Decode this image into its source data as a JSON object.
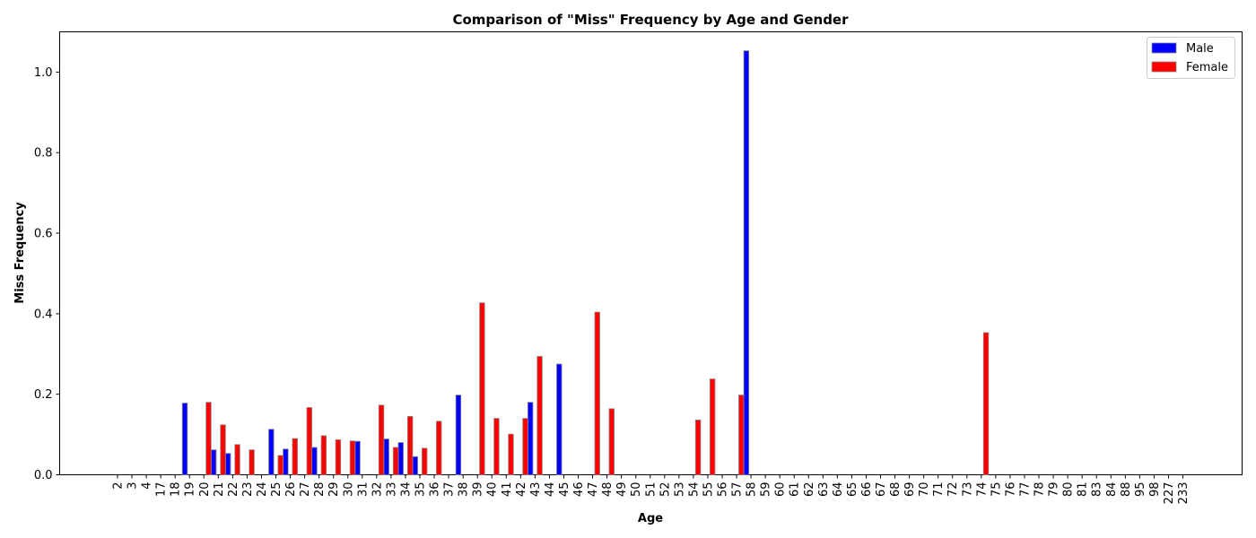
{
  "chart_data": {
    "type": "bar",
    "title": "Comparison of \"Miss\" Frequency by Age and Gender",
    "xlabel": "Age",
    "ylabel": "Miss Frequency",
    "ylim": [
      0,
      1.1
    ],
    "yticks": [
      "0.0",
      "0.2",
      "0.4",
      "0.6",
      "0.8",
      "1.0"
    ],
    "legend_position": "top-right",
    "categories": [
      "2",
      "3",
      "4",
      "17",
      "18",
      "19",
      "20",
      "21",
      "22",
      "23",
      "24",
      "25",
      "26",
      "27",
      "28",
      "29",
      "30",
      "31",
      "32",
      "33",
      "34",
      "35",
      "36",
      "37",
      "38",
      "39",
      "40",
      "41",
      "42",
      "43",
      "44",
      "45",
      "46",
      "47",
      "48",
      "49",
      "50",
      "51",
      "52",
      "53",
      "54",
      "55",
      "56",
      "57",
      "58",
      "59",
      "60",
      "61",
      "62",
      "63",
      "64",
      "65",
      "66",
      "67",
      "68",
      "69",
      "70",
      "71",
      "72",
      "73",
      "74",
      "75",
      "76",
      "77",
      "78",
      "79",
      "80",
      "81",
      "83",
      "84",
      "88",
      "95",
      "98",
      "227",
      "233"
    ],
    "series": [
      {
        "name": "Male",
        "color": "#0000ff",
        "values": [
          0,
          0,
          0,
          0,
          0,
          0.178,
          0,
          0.062,
          0.053,
          0,
          0,
          0.113,
          0.064,
          0,
          0.068,
          0,
          0,
          0.083,
          0,
          0.089,
          0.08,
          0.045,
          0,
          0,
          0.198,
          0,
          0,
          0,
          0,
          0.18,
          0,
          0.275,
          0,
          0,
          0,
          0,
          0,
          0,
          0,
          0,
          0,
          0,
          0,
          0,
          1.053,
          0,
          0,
          0,
          0,
          0,
          0,
          0,
          0,
          0,
          0,
          0,
          0,
          0,
          0,
          0,
          0,
          0,
          0,
          0,
          0,
          0,
          0,
          0,
          0,
          0,
          0,
          0,
          0,
          0,
          0
        ]
      },
      {
        "name": "Female",
        "color": "#ff0000",
        "values": [
          0,
          0,
          0,
          0,
          0,
          0,
          0.18,
          0.124,
          0.075,
          0.062,
          0,
          0.048,
          0.09,
          0.167,
          0.097,
          0.087,
          0.084,
          0,
          0.173,
          0.068,
          0.145,
          0.066,
          0.133,
          0,
          0,
          0.427,
          0.14,
          0.101,
          0.14,
          0.294,
          0,
          0,
          0,
          0.404,
          0.164,
          0,
          0,
          0,
          0,
          0,
          0.136,
          0.238,
          0,
          0.198,
          0,
          0,
          0,
          0,
          0,
          0,
          0,
          0,
          0,
          0,
          0,
          0,
          0,
          0,
          0,
          0,
          0.353,
          0,
          0,
          0,
          0,
          0,
          0,
          0,
          0,
          0,
          0,
          0,
          0,
          0,
          0
        ]
      }
    ]
  }
}
